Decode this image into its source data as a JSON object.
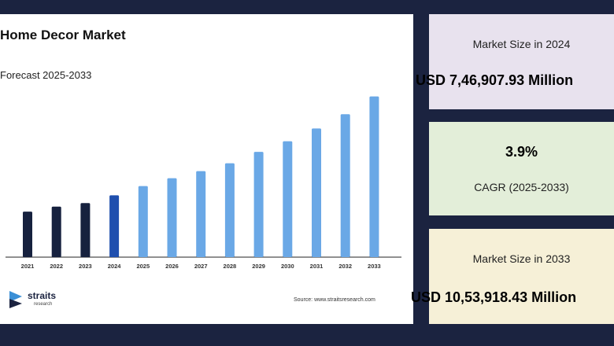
{
  "chart_data": {
    "type": "bar",
    "title": "Home Decor Market",
    "subtitle": "Forecast 2025-2033",
    "categories": [
      "2021",
      "2022",
      "2023",
      "2024",
      "2025",
      "2026",
      "2027",
      "2028",
      "2029",
      "2030",
      "2031",
      "2032",
      "2033"
    ],
    "values": [
      6.4,
      7.1,
      7.6,
      8.7,
      10.0,
      11.1,
      12.1,
      13.2,
      14.8,
      16.3,
      18.1,
      20.1,
      22.6
    ],
    "ylim": [
      0,
      24
    ],
    "grid": false,
    "legend": "none",
    "colors": {
      "historical": "#16213e",
      "base_year": "#1f4fae",
      "forecast": "#6aa8e6"
    }
  },
  "source": "Source: www.straitsresearch.com",
  "logo": {
    "name": "straits",
    "sub": "research",
    "icon": "straits-logo-icon"
  },
  "stats": {
    "size_2024": {
      "label": "Market Size in 2024",
      "value": "USD 7,46,907.93 Million"
    },
    "cagr": {
      "value": "3.9%",
      "label": "CAGR (2025-2033)"
    },
    "size_2033": {
      "label": "Market Size in 2033",
      "value": "USD 10,53,918.43 Million"
    }
  }
}
